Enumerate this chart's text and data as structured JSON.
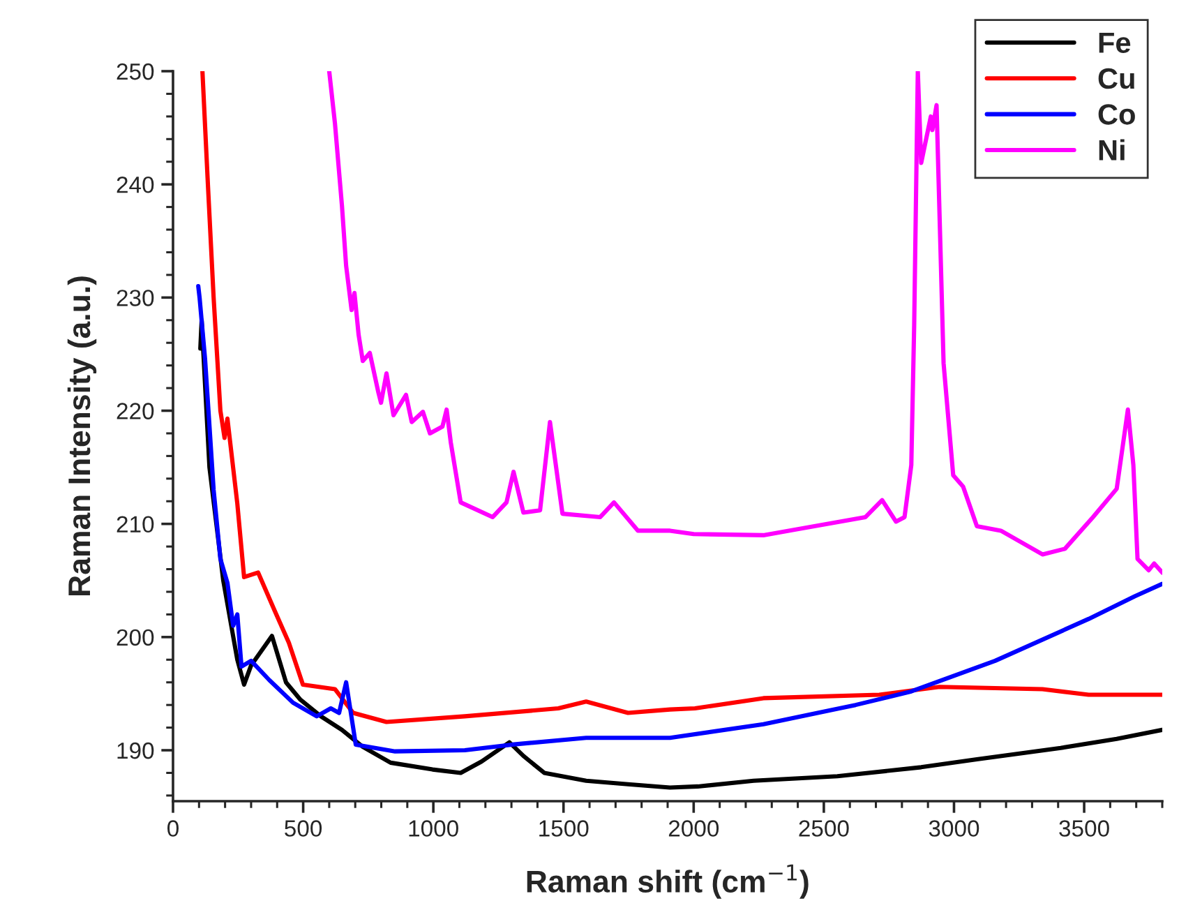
{
  "chart_data": {
    "type": "line",
    "xlabel": "Raman shift (cm$^{−1}$)",
    "ylabel": "Raman Intensity (a.u.)",
    "xlim": [
      0,
      3800
    ],
    "ylim": [
      185.5,
      250
    ],
    "xticks": [
      0,
      500,
      1000,
      1500,
      2000,
      2500,
      3000,
      3500
    ],
    "yticks": [
      190,
      200,
      210,
      220,
      230,
      240,
      250
    ],
    "grid": false,
    "legend": "top right",
    "marker": "none",
    "line_style": "solid",
    "series": [
      {
        "name": "Fe",
        "color": "#000000",
        "x": [
          105,
          110,
          140,
          193,
          247,
          273,
          300,
          380,
          434,
          488,
          568,
          649,
          729,
          836,
          997,
          1105,
          1185,
          1292,
          1346,
          1426,
          1587,
          1748,
          1909,
          2016,
          2230,
          2552,
          2874,
          3088,
          3410,
          3625,
          3800
        ],
        "values": [
          225.5,
          228,
          215,
          205,
          198,
          195.8,
          197.5,
          200.1,
          196,
          194.5,
          193,
          191.8,
          190.3,
          188.9,
          188.3,
          188,
          189,
          190.7,
          189.5,
          188,
          187.3,
          187,
          186.7,
          186.8,
          187.3,
          187.7,
          188.5,
          189.2,
          190.2,
          191,
          191.8
        ]
      },
      {
        "name": "Cu",
        "color": "#ff0000",
        "x": [
          113,
          134,
          156,
          182,
          198,
          209,
          247,
          273,
          327,
          391,
          445,
          499,
          622,
          692,
          820,
          1121,
          1480,
          1587,
          1748,
          1909,
          2005,
          2268,
          2713,
          2944,
          3340,
          3517,
          3800
        ],
        "values": [
          250,
          240,
          230,
          220,
          217.6,
          219.3,
          211.8,
          205.3,
          205.7,
          202.3,
          199.5,
          195.8,
          195.4,
          193.3,
          192.5,
          193,
          193.7,
          194.3,
          193.3,
          193.6,
          193.7,
          194.6,
          194.9,
          195.6,
          195.4,
          194.9,
          194.9
        ]
      },
      {
        "name": "Co",
        "color": "#0000ff",
        "x": [
          97,
          102,
          123,
          139,
          156,
          182,
          209,
          231,
          247,
          263,
          300,
          370,
          461,
          552,
          606,
          638,
          665,
          702,
          853,
          1121,
          1303,
          1587,
          1909,
          2268,
          2622,
          2836,
          3158,
          3517,
          3694,
          3800
        ],
        "values": [
          231,
          230,
          224.6,
          219,
          213,
          206.9,
          204.8,
          201,
          202,
          197.4,
          197.9,
          196.2,
          194.2,
          193,
          193.7,
          193.3,
          196,
          190.5,
          189.9,
          190,
          190.5,
          191.1,
          191.1,
          192.3,
          194,
          195.2,
          197.9,
          201.6,
          203.6,
          204.7
        ]
      },
      {
        "name": "Ni",
        "color": "#ff00ff",
        "x": [
          600,
          622,
          649,
          665,
          686,
          697,
          713,
          729,
          756,
          788,
          799,
          820,
          847,
          895,
          917,
          960,
          987,
          1035,
          1051,
          1067,
          1105,
          1228,
          1281,
          1308,
          1346,
          1410,
          1448,
          1496,
          1641,
          1694,
          1786,
          1909,
          2000,
          2268,
          2660,
          2724,
          2777,
          2810,
          2836,
          2847,
          2861,
          2874,
          2911,
          2917,
          2933,
          2960,
          2997,
          3035,
          3088,
          3180,
          3340,
          3426,
          3534,
          3625,
          3668,
          3689,
          3705,
          3748,
          3769,
          3800
        ],
        "values": [
          250,
          245.4,
          238.1,
          232.8,
          228.9,
          230.4,
          226.7,
          224.4,
          225.1,
          221.7,
          220.7,
          223.3,
          219.6,
          221.4,
          219,
          219.9,
          218,
          218.6,
          220.1,
          217.2,
          211.9,
          210.6,
          211.9,
          214.6,
          211,
          211.2,
          219,
          210.9,
          210.6,
          211.9,
          209.4,
          209.4,
          209.1,
          209,
          210.6,
          212.1,
          210.2,
          210.6,
          215.2,
          227.5,
          250,
          241.9,
          246,
          244.8,
          247,
          224.2,
          214.3,
          213.3,
          209.8,
          209.4,
          207.3,
          207.8,
          210.6,
          213.1,
          220.1,
          215.2,
          206.9,
          205.9,
          206.5,
          205.7
        ]
      }
    ]
  }
}
